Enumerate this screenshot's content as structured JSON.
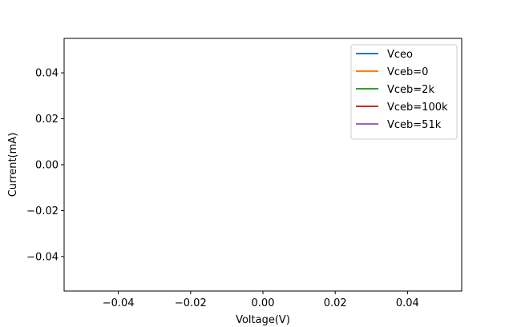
{
  "chart_data": {
    "type": "line",
    "title": "",
    "xlabel": "Voltage(V)",
    "ylabel": "Current(mA)",
    "xlim": [
      -0.055,
      0.055
    ],
    "ylim": [
      -0.055,
      0.055
    ],
    "xticks": [
      -0.04,
      -0.02,
      0.0,
      0.02,
      0.04
    ],
    "yticks": [
      -0.04,
      -0.02,
      0.0,
      0.02,
      0.04
    ],
    "xtick_labels": [
      "−0.04",
      "−0.02",
      "0.00",
      "0.02",
      "0.04"
    ],
    "ytick_labels": [
      "−0.04",
      "−0.02",
      "0.00",
      "0.02",
      "0.04"
    ],
    "grid": false,
    "legend_position": "top-right",
    "series": [
      {
        "name": "Vceo",
        "color": "#1f77b4",
        "x": [],
        "y": []
      },
      {
        "name": "Vceb=0",
        "color": "#ff7f0e",
        "x": [],
        "y": []
      },
      {
        "name": "Vceb=2k",
        "color": "#2ca02c",
        "x": [],
        "y": []
      },
      {
        "name": "Vceb=100k",
        "color": "#d62728",
        "x": [],
        "y": []
      },
      {
        "name": "Vceb=51k",
        "color": "#9467bd",
        "x": [],
        "y": []
      }
    ]
  }
}
